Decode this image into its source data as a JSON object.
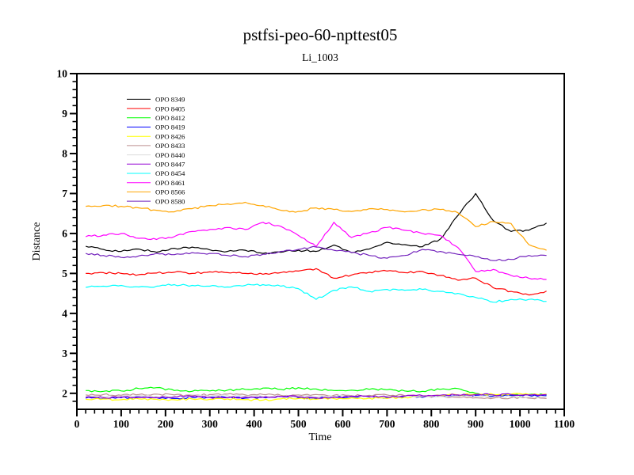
{
  "title": "pstfsi-peo-60-npttest05",
  "subtitle": "Li_1003",
  "chart_data": {
    "type": "line",
    "title": "pstfsi-peo-60-npttest05",
    "subtitle": "Li_1003",
    "xlabel": "Time",
    "ylabel": "Distance",
    "xlim": [
      0,
      1100
    ],
    "ylim": [
      1.6,
      10
    ],
    "grid": false,
    "legend_position": "upper-left-inside",
    "xticks": [
      0,
      100,
      200,
      300,
      400,
      500,
      600,
      700,
      800,
      900,
      1000,
      1100
    ],
    "xticks_minor_step": 20,
    "yticks": [
      2,
      3,
      4,
      5,
      6,
      7,
      8,
      9,
      10
    ],
    "yticks_minor_step": 0.2,
    "x": [
      20,
      60,
      100,
      140,
      180,
      220,
      260,
      300,
      340,
      380,
      420,
      460,
      500,
      540,
      580,
      620,
      660,
      700,
      740,
      780,
      820,
      860,
      900,
      940,
      980,
      1020,
      1060
    ],
    "series": [
      {
        "name": "OPO 8349",
        "color": "#000000",
        "values": [
          5.68,
          5.6,
          5.55,
          5.61,
          5.53,
          5.63,
          5.66,
          5.59,
          5.55,
          5.58,
          5.5,
          5.53,
          5.58,
          5.55,
          5.71,
          5.52,
          5.61,
          5.78,
          5.72,
          5.67,
          5.86,
          6.45,
          7.0,
          6.32,
          6.05,
          6.08,
          6.26
        ]
      },
      {
        "name": "OPO 8405",
        "color": "#FF0000",
        "values": [
          5.0,
          5.02,
          5.0,
          4.97,
          5.01,
          5.03,
          5.0,
          5.04,
          5.02,
          5.0,
          4.98,
          5.02,
          5.06,
          5.12,
          4.88,
          4.96,
          5.03,
          5.06,
          5.02,
          5.05,
          4.95,
          4.83,
          4.88,
          4.64,
          4.55,
          4.46,
          4.56
        ]
      },
      {
        "name": "OPO 8412",
        "color": "#00FF00",
        "values": [
          2.07,
          2.05,
          2.06,
          2.12,
          2.14,
          2.07,
          2.05,
          2.06,
          2.08,
          2.1,
          2.13,
          2.1,
          2.14,
          2.11,
          2.07,
          2.08,
          2.1,
          2.09,
          2.06,
          2.05,
          2.1,
          2.12,
          2.0,
          1.96,
          1.95,
          1.97,
          1.96
        ]
      },
      {
        "name": "OPO 8419",
        "color": "#0000FF",
        "values": [
          1.88,
          1.87,
          1.89,
          1.91,
          1.89,
          1.87,
          1.9,
          1.9,
          1.89,
          1.88,
          1.9,
          1.92,
          1.89,
          1.87,
          1.9,
          1.92,
          1.91,
          1.9,
          1.92,
          1.9,
          1.92,
          1.94,
          1.95,
          1.93,
          1.94,
          1.95,
          1.94
        ]
      },
      {
        "name": "OPO 8426",
        "color": "#FFFF00",
        "values": [
          1.85,
          1.86,
          1.84,
          1.86,
          1.85,
          1.84,
          1.86,
          1.85,
          1.86,
          1.84,
          1.83,
          1.86,
          1.87,
          1.85,
          1.87,
          1.89,
          1.88,
          1.87,
          1.9,
          1.92,
          1.94,
          1.96,
          1.98,
          1.97,
          1.98,
          1.97,
          1.98
        ]
      },
      {
        "name": "OPO 8433",
        "color": "#BC8F8F",
        "values": [
          1.96,
          1.97,
          1.95,
          1.97,
          1.98,
          1.96,
          1.95,
          1.97,
          1.98,
          1.96,
          1.97,
          1.95,
          1.96,
          1.97,
          1.95,
          1.94,
          1.95,
          1.96,
          1.94,
          1.93,
          1.92,
          1.9,
          1.89,
          1.88,
          1.89,
          1.88,
          1.87
        ]
      },
      {
        "name": "OPO 8440",
        "color": "#DCDCDC",
        "values": [
          1.92,
          1.91,
          1.93,
          1.94,
          1.92,
          1.93,
          1.92,
          1.93,
          1.94,
          1.93,
          1.92,
          1.93,
          1.92,
          1.91,
          1.92,
          1.93,
          1.92,
          1.91,
          1.92,
          1.93,
          1.92,
          1.93,
          1.92,
          1.91,
          1.92,
          1.91,
          1.92
        ]
      },
      {
        "name": "OPO 8447",
        "color": "#9400D3",
        "values": [
          1.9,
          1.89,
          1.91,
          1.9,
          1.89,
          1.91,
          1.92,
          1.9,
          1.89,
          1.91,
          1.9,
          1.92,
          1.91,
          1.89,
          1.91,
          1.93,
          1.92,
          1.91,
          1.93,
          1.94,
          1.95,
          1.96,
          1.97,
          1.96,
          1.97,
          1.96,
          1.97
        ]
      },
      {
        "name": "OPO 8454",
        "color": "#00FFFF",
        "values": [
          4.65,
          4.68,
          4.7,
          4.66,
          4.68,
          4.72,
          4.7,
          4.68,
          4.66,
          4.7,
          4.72,
          4.68,
          4.62,
          4.35,
          4.58,
          4.66,
          4.55,
          4.6,
          4.58,
          4.6,
          4.55,
          4.5,
          4.4,
          4.28,
          4.35,
          4.35,
          4.3
        ]
      },
      {
        "name": "OPO 8461",
        "color": "#FF00FF",
        "values": [
          5.92,
          5.96,
          6.0,
          5.88,
          5.85,
          5.92,
          6.05,
          6.1,
          6.15,
          6.1,
          6.28,
          6.18,
          5.95,
          5.67,
          6.28,
          5.9,
          6.02,
          6.15,
          6.08,
          6.0,
          5.95,
          5.65,
          5.05,
          5.1,
          4.95,
          4.88,
          4.85
        ]
      },
      {
        "name": "OPO 8566",
        "color": "#FFA500",
        "values": [
          6.68,
          6.7,
          6.68,
          6.64,
          6.58,
          6.54,
          6.62,
          6.7,
          6.74,
          6.78,
          6.7,
          6.58,
          6.55,
          6.64,
          6.6,
          6.55,
          6.62,
          6.6,
          6.54,
          6.6,
          6.6,
          6.52,
          6.17,
          6.3,
          6.25,
          5.72,
          5.58
        ]
      },
      {
        "name": "OPO 8580",
        "color": "#7221BC",
        "values": [
          5.5,
          5.45,
          5.4,
          5.44,
          5.5,
          5.47,
          5.52,
          5.5,
          5.45,
          5.42,
          5.48,
          5.55,
          5.6,
          5.66,
          5.58,
          5.52,
          5.45,
          5.38,
          5.45,
          5.6,
          5.55,
          5.48,
          5.42,
          5.32,
          5.35,
          5.45,
          5.45
        ]
      }
    ]
  }
}
